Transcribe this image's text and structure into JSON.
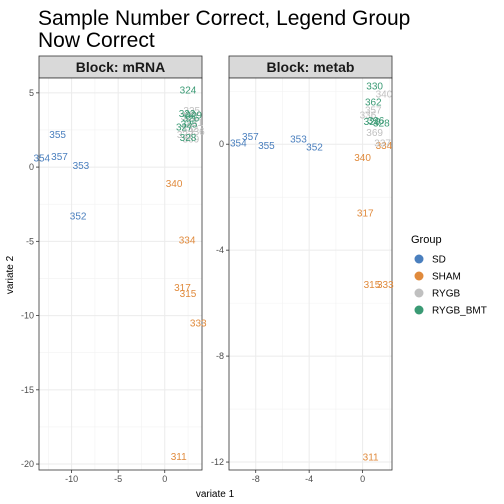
{
  "title_lines": [
    "Sample Number Correct, Legend Group",
    "Now Correct"
  ],
  "colors": {
    "SD": "#4a7fbe",
    "SHAM": "#e08a3c",
    "RYGB": "#c0c0c0",
    "RYGB_BMT": "#3a9a74"
  },
  "chart_data": [
    {
      "type": "scatter",
      "facet": "Block: mRNA",
      "xlabel": "variate 1",
      "ylabel": "variate 2",
      "xlim": [
        -13.5,
        4
      ],
      "ylim": [
        -20.4,
        6
      ],
      "xticks": [
        -10,
        -5,
        0
      ],
      "yticks": [
        5,
        0,
        -5,
        -10,
        -15,
        -20
      ],
      "points": [
        {
          "label": "324",
          "group": "RYGB_BMT",
          "x": 2.5,
          "y": 5.2
        },
        {
          "label": "355",
          "group": "SD",
          "x": -11.5,
          "y": 2.2
        },
        {
          "label": "354",
          "group": "SD",
          "x": -13.2,
          "y": 0.6
        },
        {
          "label": "357",
          "group": "SD",
          "x": -11.3,
          "y": 0.7
        },
        {
          "label": "353",
          "group": "SD",
          "x": -9.0,
          "y": 0.1
        },
        {
          "label": "352",
          "group": "SD",
          "x": -9.3,
          "y": -3.3
        },
        {
          "label": "340",
          "group": "SHAM",
          "x": 1.0,
          "y": -1.1
        },
        {
          "label": "334",
          "group": "SHAM",
          "x": 2.4,
          "y": -4.9
        },
        {
          "label": "317",
          "group": "SHAM",
          "x": 1.9,
          "y": -8.1
        },
        {
          "label": "315",
          "group": "SHAM",
          "x": 2.5,
          "y": -8.5
        },
        {
          "label": "333",
          "group": "SHAM",
          "x": 3.6,
          "y": -10.5
        },
        {
          "label": "311",
          "group": "SHAM",
          "x": 1.5,
          "y": -19.5
        },
        {
          "label": "330",
          "group": "RYGB",
          "x": 2.6,
          "y": 3.4
        },
        {
          "label": "331",
          "group": "RYGB",
          "x": 3.2,
          "y": 3.0
        },
        {
          "label": "332",
          "group": "RYGB",
          "x": 2.7,
          "y": 2.6
        },
        {
          "label": "335",
          "group": "RYGB",
          "x": 2.9,
          "y": 3.8
        },
        {
          "label": "336",
          "group": "RYGB",
          "x": 3.4,
          "y": 2.4
        },
        {
          "label": "337",
          "group": "RYGB",
          "x": 2.2,
          "y": 2.2
        },
        {
          "label": "369",
          "group": "RYGB",
          "x": 2.8,
          "y": 1.9
        },
        {
          "label": "322",
          "group": "RYGB_BMT",
          "x": 2.4,
          "y": 3.6
        },
        {
          "label": "325",
          "group": "RYGB_BMT",
          "x": 2.6,
          "y": 2.9
        },
        {
          "label": "326",
          "group": "RYGB_BMT",
          "x": 2.8,
          "y": 3.3
        },
        {
          "label": "327",
          "group": "RYGB_BMT",
          "x": 2.1,
          "y": 2.7
        },
        {
          "label": "328",
          "group": "RYGB_BMT",
          "x": 2.5,
          "y": 2.0
        },
        {
          "label": "329",
          "group": "RYGB_BMT",
          "x": 3.1,
          "y": 3.5
        }
      ]
    },
    {
      "type": "scatter",
      "facet": "Block: metab",
      "xlabel": "variate 1",
      "ylabel": "variate 2",
      "xlim": [
        -10,
        2.2
      ],
      "ylim": [
        -12.3,
        2.5
      ],
      "xticks": [
        -8,
        -4,
        0
      ],
      "yticks": [
        0,
        -4,
        -8,
        -12
      ],
      "points": [
        {
          "label": "354",
          "group": "SD",
          "x": -9.3,
          "y": 0.05
        },
        {
          "label": "357",
          "group": "SD",
          "x": -8.4,
          "y": 0.3
        },
        {
          "label": "355",
          "group": "SD",
          "x": -7.2,
          "y": -0.05
        },
        {
          "label": "353",
          "group": "SD",
          "x": -4.8,
          "y": 0.2
        },
        {
          "label": "352",
          "group": "SD",
          "x": -3.6,
          "y": -0.1
        },
        {
          "label": "340",
          "group": "SHAM",
          "x": 0.0,
          "y": -0.5
        },
        {
          "label": "334",
          "group": "SHAM",
          "x": 1.6,
          "y": -0.05
        },
        {
          "label": "317",
          "group": "SHAM",
          "x": 0.2,
          "y": -2.6
        },
        {
          "label": "315",
          "group": "SHAM",
          "x": 0.7,
          "y": -5.3
        },
        {
          "label": "333",
          "group": "SHAM",
          "x": 1.7,
          "y": -5.3
        },
        {
          "label": "311",
          "group": "SHAM",
          "x": 0.6,
          "y": -11.8
        },
        {
          "label": "330",
          "group": "RYGB_BMT",
          "x": 0.9,
          "y": 2.2
        },
        {
          "label": "340",
          "group": "RYGB",
          "x": 1.6,
          "y": 1.9
        },
        {
          "label": "362",
          "group": "RYGB_BMT",
          "x": 0.8,
          "y": 1.6
        },
        {
          "label": "357",
          "group": "RYGB",
          "x": 0.8,
          "y": 1.3
        },
        {
          "label": "336",
          "group": "RYGB",
          "x": 0.4,
          "y": 1.1
        },
        {
          "label": "326",
          "group": "RYGB_BMT",
          "x": 1.0,
          "y": 0.9
        },
        {
          "label": "328",
          "group": "RYGB_BMT",
          "x": 1.4,
          "y": 0.8
        },
        {
          "label": "329",
          "group": "RYGB_BMT",
          "x": 0.7,
          "y": 0.85
        },
        {
          "label": "369",
          "group": "RYGB",
          "x": 0.9,
          "y": 0.45
        },
        {
          "label": "337",
          "group": "RYGB",
          "x": 1.5,
          "y": 0.05
        }
      ]
    }
  ],
  "legend": {
    "title": "Group",
    "position": "right",
    "items": [
      {
        "key": "SD",
        "label": "SD"
      },
      {
        "key": "SHAM",
        "label": "SHAM"
      },
      {
        "key": "RYGB",
        "label": "RYGB"
      },
      {
        "key": "RYGB_BMT",
        "label": "RYGB_BMT"
      }
    ]
  }
}
